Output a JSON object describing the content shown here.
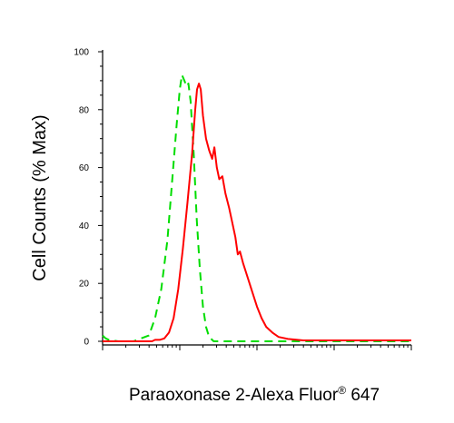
{
  "chart_data": {
    "type": "line",
    "title": "",
    "xlabel": {
      "main": "Paraoxonase 2-Alexa Fluor",
      "registered": "®",
      "suffix": " 647"
    },
    "ylabel": "Cell Counts (% Max)",
    "ylim": [
      0,
      100
    ],
    "y_ticks": [
      "0",
      "20",
      "40",
      "60",
      "80",
      "100"
    ],
    "x_scale": "log",
    "x_tick_labels_shown": false,
    "grid": false,
    "legend": "none",
    "series": [
      {
        "color": "#00dd00",
        "dash": "dashed",
        "points": [
          [
            0.0,
            2
          ],
          [
            0.01,
            1
          ],
          [
            0.02,
            0.5
          ],
          [
            0.05,
            0
          ],
          [
            0.1,
            0
          ],
          [
            0.15,
            2
          ],
          [
            0.17,
            8
          ],
          [
            0.19,
            18
          ],
          [
            0.21,
            35
          ],
          [
            0.225,
            55
          ],
          [
            0.24,
            75
          ],
          [
            0.25,
            87
          ],
          [
            0.257,
            92
          ],
          [
            0.265,
            90
          ],
          [
            0.272,
            88
          ],
          [
            0.278,
            89
          ],
          [
            0.285,
            83
          ],
          [
            0.295,
            65
          ],
          [
            0.305,
            42
          ],
          [
            0.315,
            25
          ],
          [
            0.325,
            12
          ],
          [
            0.335,
            5
          ],
          [
            0.345,
            1.5
          ],
          [
            0.36,
            0
          ],
          [
            1.0,
            0
          ]
        ]
      },
      {
        "color": "#ff0000",
        "dash": "solid",
        "points": [
          [
            0.0,
            0
          ],
          [
            0.16,
            0
          ],
          [
            0.17,
            0.5
          ],
          [
            0.185,
            0.5
          ],
          [
            0.2,
            1
          ],
          [
            0.215,
            3
          ],
          [
            0.23,
            8
          ],
          [
            0.245,
            18
          ],
          [
            0.26,
            32
          ],
          [
            0.275,
            48
          ],
          [
            0.29,
            65
          ],
          [
            0.3,
            80
          ],
          [
            0.306,
            87
          ],
          [
            0.312,
            89
          ],
          [
            0.318,
            87
          ],
          [
            0.325,
            78
          ],
          [
            0.335,
            70
          ],
          [
            0.345,
            66
          ],
          [
            0.355,
            63
          ],
          [
            0.362,
            67
          ],
          [
            0.37,
            60
          ],
          [
            0.378,
            56
          ],
          [
            0.388,
            57
          ],
          [
            0.398,
            51
          ],
          [
            0.41,
            46
          ],
          [
            0.42,
            41
          ],
          [
            0.43,
            36
          ],
          [
            0.438,
            30
          ],
          [
            0.445,
            31
          ],
          [
            0.455,
            27
          ],
          [
            0.47,
            22
          ],
          [
            0.485,
            17
          ],
          [
            0.5,
            12
          ],
          [
            0.515,
            8
          ],
          [
            0.53,
            5
          ],
          [
            0.55,
            3
          ],
          [
            0.57,
            1.5
          ],
          [
            0.6,
            0.8
          ],
          [
            0.65,
            0.3
          ],
          [
            0.7,
            0.3
          ],
          [
            0.8,
            0.3
          ],
          [
            1.0,
            0.3
          ]
        ]
      }
    ]
  }
}
